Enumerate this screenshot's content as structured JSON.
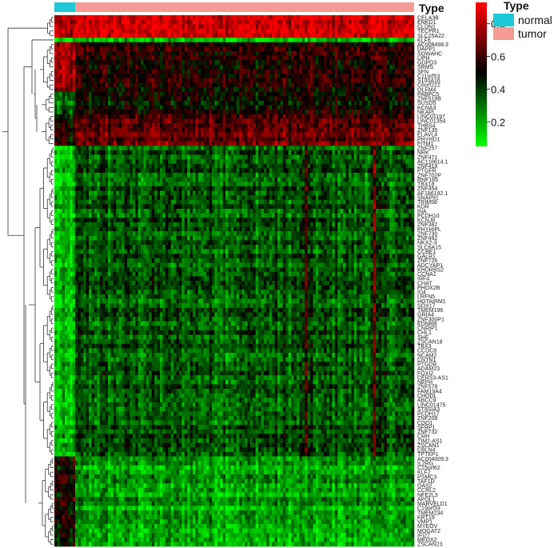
{
  "chart_data": {
    "type": "heatmap",
    "title": "",
    "annotation": {
      "title": "Type",
      "groups": [
        {
          "name": "normal",
          "color": "#1ec8d6"
        },
        {
          "name": "tumor",
          "color": "#f59b95"
        }
      ]
    },
    "color_scale": {
      "low_color": "#00ff00",
      "mid_color": "#000000",
      "high_color": "#ff0000",
      "range": [
        0.05,
        0.93
      ],
      "ticks": [
        "0.8",
        "0.6",
        "0.4",
        "0.2"
      ],
      "tick_values": [
        0.8,
        0.6,
        0.4,
        0.2
      ]
    },
    "legend": {
      "title": "Type",
      "items": [
        "normal",
        "tumor"
      ],
      "placement": "top-right"
    },
    "row_dendrogram": true,
    "rows": [
      "CELA3B",
      "ENKD1",
      "CLDN1",
      "TECPR1",
      "SLC25A22",
      "KLF6",
      "AC008498.3",
      "DAPP1",
      "SOWAHC",
      "LIPH",
      "GDPD3",
      "SRMS",
      "SFN",
      "C11orf53",
      "S100A16",
      "C6orf222",
      "OLFM4",
      "PABPC5",
      "ZNF518B",
      "SUSD5",
      "KCNA3",
      "NKAPL",
      "LINC01197",
      "LINC01354",
      "THBS4",
      "ZNF135",
      "ELAVL4",
      "PHYHD1",
      "FITM1",
      "ZNF257",
      "NRK",
      "ZNF471",
      "AC118614.1",
      "ZNF418",
      "PTGFR",
      "ZNF702P",
      "RNF165",
      "TBX18",
      "ZNF454",
      "AF186192.1",
      "SNAP91",
      "TRIM58",
      "KDR",
      "INA",
      "PCDH10",
      "KCNJ8",
      "ZNF382",
      "PHYHIPL",
      "ZNF730",
      "ZNF492",
      "NKX2-3",
      "SLC6A15",
      "CCBE1",
      "GALR1",
      "ZNF726",
      "ADCYAP1",
      "KHDRBS2",
      "CCNA1",
      "IRF4",
      "CHAT",
      "PHOX2B",
      "ID4",
      "LRFN5",
      "HOTAIRM1",
      "SOX17",
      "TMEM196",
      "GRIA4",
      "ZNF300P1",
      "EDNRB",
      "CNRIP1",
      "CHL1",
      "SHE",
      "ZSCAN18",
      "TBX3",
      "CCDC8",
      "NCAM2",
      "CNTN1",
      "PTGDR",
      "ADAM23",
      "FOXI2",
      "CERS3-AS1",
      "NEFH",
      "ZNF578",
      "FAM19A4",
      "CHODL",
      "ABCC9",
      "LINC01475",
      "ST8SIA3",
      "PCDH17",
      "ZNF208",
      "CDO1",
      "SFRP1",
      "ZNF732",
      "CRH",
      "ZIM2-AS1",
      "ZSCAN1",
      "CBLN4",
      "TPTEP1",
      "AC004009.3",
      "IL2RG",
      "C15orf62",
      "KLF2",
      "PSMC3",
      "TAF1D",
      "OAS2",
      "CCRL2",
      "NFE2L3",
      "APOL1",
      "MARVELD1",
      "C19orf33",
      "TMEM234",
      "KRT19",
      "VMP1",
      "MYEOV",
      "MOGAT2",
      "IFI27",
      "MEOX2",
      "ZSCAN23"
    ],
    "row_blocks": [
      {
        "from": "CELA3B",
        "to": "SLC25A22",
        "normal_mean": 0.78,
        "tumor_mean": 0.85
      },
      {
        "from": "KLF6",
        "to": "KLF6",
        "normal_mean": 0.12,
        "tumor_mean": 0.18
      },
      {
        "from": "AC008498.3",
        "to": "OLFM4",
        "normal_mean": 0.75,
        "tumor_mean": 0.55
      },
      {
        "from": "PABPC5",
        "to": "NKAPL",
        "normal_mean": 0.3,
        "tumor_mean": 0.5
      },
      {
        "from": "LINC01197",
        "to": "FITM1",
        "normal_mean": 0.5,
        "tumor_mean": 0.65
      },
      {
        "from": "ZNF257",
        "to": "TPTEP1",
        "normal_mean": 0.15,
        "tumor_mean": 0.35
      },
      {
        "from": "AC004009.3",
        "to": "ZSCAN23",
        "normal_mean": 0.5,
        "tumor_mean": 0.22
      }
    ]
  }
}
